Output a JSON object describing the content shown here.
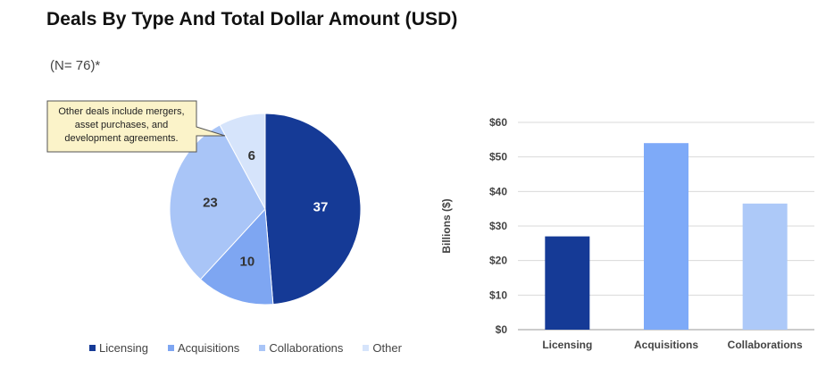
{
  "title": "Deals By Type And Total Dollar Amount (USD)",
  "subtitle": "(N= 76)*",
  "callout": {
    "lines": [
      "Other deals include mergers,",
      "asset purchases, and",
      "development agreements."
    ]
  },
  "chart_data": [
    {
      "type": "pie",
      "categories": [
        "Licensing",
        "Acquisitions",
        "Collaborations",
        "Other"
      ],
      "values": [
        37,
        10,
        23,
        6
      ],
      "colors": [
        "#153a96",
        "#7ea6f2",
        "#a9c5f7",
        "#d6e4fb"
      ],
      "label_colors": [
        "#ffffff",
        "#333333",
        "#333333",
        "#333333"
      ],
      "legend": "bottom"
    },
    {
      "type": "bar",
      "categories": [
        "Licensing",
        "Acquisitions",
        "Collaborations"
      ],
      "values": [
        27,
        54,
        36.5
      ],
      "colors": [
        "#153a96",
        "#7eaaf8",
        "#adc9f8"
      ],
      "ylabel": "Billions ($)",
      "ylim": [
        0,
        60
      ],
      "yticks": [
        "$0",
        "$10",
        "$20",
        "$30",
        "$40",
        "$50",
        "$60"
      ],
      "grid": true
    }
  ]
}
